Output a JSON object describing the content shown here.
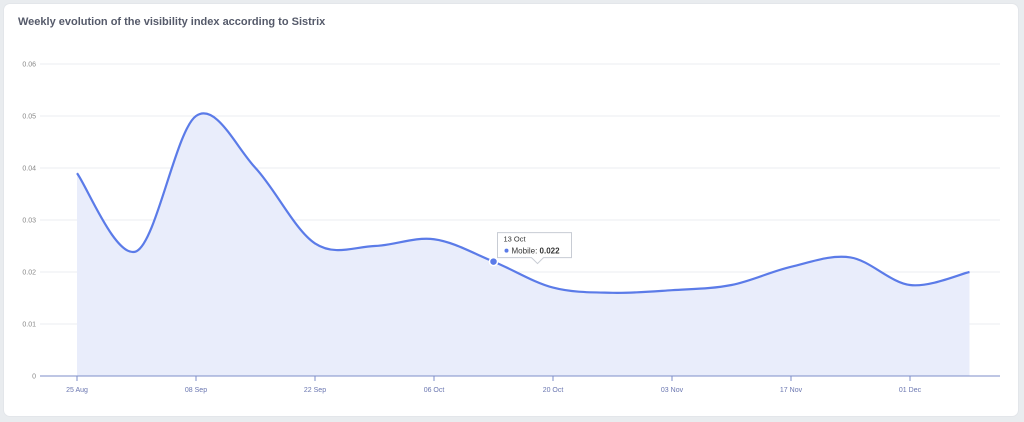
{
  "chart_title": "Weekly evolution of the visibility index according to Sistrix",
  "colors": {
    "line": "#5b7be8",
    "area": "#e9edfb",
    "grid": "#ebedf0",
    "axis": "#7d8ec9"
  },
  "tooltip": {
    "date": "13 Oct",
    "series": "Mobile",
    "value": "0.022"
  },
  "chart_data": {
    "type": "area",
    "title": "Weekly evolution of the visibility index according to Sistrix",
    "xlabel": "",
    "ylabel": "",
    "ylim": [
      0,
      0.06
    ],
    "y_ticks": [
      "0",
      "0.01",
      "0.02",
      "0.03",
      "0.04",
      "0.05",
      "0.06"
    ],
    "x_ticks": [
      "25 Aug",
      "08 Sep",
      "22 Sep",
      "06 Oct",
      "20 Oct",
      "03 Nov",
      "17 Nov",
      "01 Dec"
    ],
    "grid": true,
    "series": [
      {
        "name": "Mobile",
        "x": [
          "25 Aug",
          "01 Sep",
          "08 Sep",
          "15 Sep",
          "22 Sep",
          "29 Sep",
          "06 Oct",
          "13 Oct",
          "20 Oct",
          "27 Oct",
          "03 Nov",
          "10 Nov",
          "17 Nov",
          "24 Nov",
          "01 Dec",
          "08 Dec"
        ],
        "values": [
          0.039,
          0.024,
          0.05,
          0.04,
          0.0255,
          0.025,
          0.0263,
          0.022,
          0.017,
          0.016,
          0.0165,
          0.0175,
          0.021,
          0.0228,
          0.0175,
          0.02
        ]
      }
    ]
  }
}
